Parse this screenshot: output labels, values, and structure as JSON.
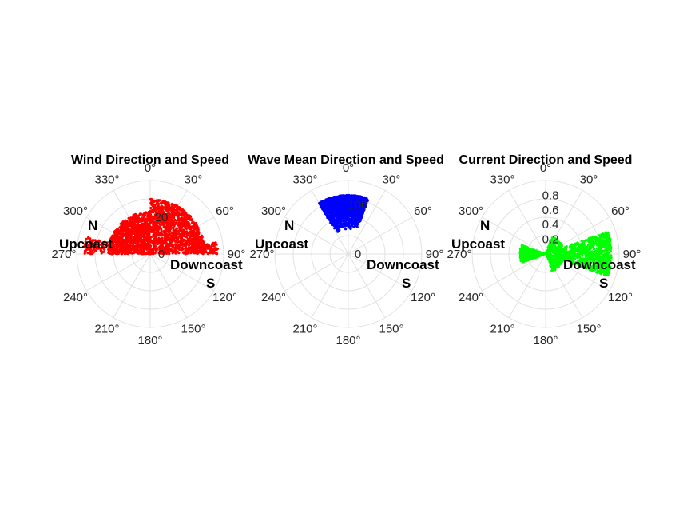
{
  "chart_data": [
    {
      "type": "scatter",
      "coordinate_system": "polar",
      "title": "Wind Direction and Speed",
      "theta_zero_location": "top",
      "theta_direction": "clockwise",
      "theta_ticks": [
        "0°",
        "30°",
        "60°",
        "90°",
        "120°",
        "150°",
        "180°",
        "210°",
        "240°",
        "270°",
        "300°",
        "330°"
      ],
      "r_ticks": [
        "0",
        "20"
      ],
      "r_tick_values": [
        0,
        20
      ],
      "rlim": [
        0,
        40
      ],
      "grid": true,
      "annotations": [
        "N",
        "Upcoast",
        "Downcoast",
        "S"
      ],
      "series": [
        {
          "color": "#ff0000",
          "marker": "dot",
          "clusters": [
            {
              "theta_range": [
                270,
                360
              ],
              "r_range": [
                0,
                23
              ],
              "count": 900
            },
            {
              "theta_range": [
                0,
                90
              ],
              "r_range": [
                0,
                30
              ],
              "count": 1100
            },
            {
              "theta_range": [
                80,
                90
              ],
              "r_range": [
                20,
                37
              ],
              "count": 120
            },
            {
              "theta_range": [
                270,
                285
              ],
              "r_range": [
                20,
                36
              ],
              "count": 80
            }
          ]
        }
      ]
    },
    {
      "type": "scatter",
      "coordinate_system": "polar",
      "title": "Wave Mean Direction and Speed",
      "theta_zero_location": "top",
      "theta_direction": "clockwise",
      "theta_ticks": [
        "0°",
        "30°",
        "60°",
        "90°",
        "120°",
        "150°",
        "180°",
        "210°",
        "240°",
        "270°",
        "300°",
        "330°"
      ],
      "r_ticks": [
        "0",
        "100"
      ],
      "r_tick_values": [
        0,
        100
      ],
      "rlim": [
        0,
        150
      ],
      "grid": true,
      "annotations": [
        "N",
        "Upcoast",
        "Downcoast",
        "S"
      ],
      "series": [
        {
          "color": "#0000ff",
          "marker": "dot",
          "clusters": [
            {
              "theta_range": [
                330,
                360
              ],
              "r_range": [
                50,
                120
              ],
              "count": 900
            },
            {
              "theta_range": [
                0,
                20
              ],
              "r_range": [
                50,
                120
              ],
              "count": 700
            }
          ]
        }
      ]
    },
    {
      "type": "scatter",
      "coordinate_system": "polar",
      "title": "Current Direction and Speed",
      "theta_zero_location": "top",
      "theta_direction": "clockwise",
      "theta_ticks": [
        "0°",
        "30°",
        "60°",
        "90°",
        "120°",
        "150°",
        "180°",
        "210°",
        "240°",
        "270°",
        "300°",
        "330°"
      ],
      "r_ticks": [
        "0.2",
        "0.4",
        "0.6",
        "0.8"
      ],
      "r_tick_values": [
        0.2,
        0.4,
        0.6,
        0.8
      ],
      "rlim": [
        0,
        1
      ],
      "grid": true,
      "annotations": [
        "N",
        "Upcoast",
        "Downcoast",
        "S"
      ],
      "series": [
        {
          "color": "#00ff00",
          "marker": "dot",
          "clusters": [
            {
              "theta_range": [
                70,
                110
              ],
              "r_range": [
                0,
                0.9
              ],
              "count": 800
            },
            {
              "theta_range": [
                250,
                290
              ],
              "r_range": [
                0,
                0.35
              ],
              "count": 500
            },
            {
              "theta_range": [
                20,
                70
              ],
              "r_range": [
                0,
                0.25
              ],
              "count": 120
            },
            {
              "theta_range": [
                110,
                160
              ],
              "r_range": [
                0,
                0.25
              ],
              "count": 80
            }
          ]
        }
      ]
    }
  ]
}
